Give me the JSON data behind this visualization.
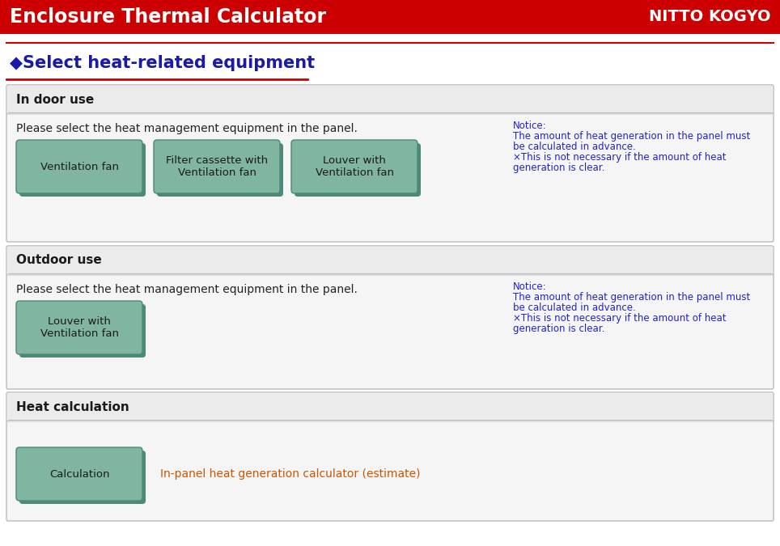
{
  "title": "Enclosure Thermal Calculator",
  "brand": "NITTO KOGYO",
  "header_bg": "#CC0000",
  "header_text_color": "#FFFFFF",
  "page_bg": "#FFFFFF",
  "section_heading": "◆Select heat-related equipment",
  "section_heading_color": "#1a1aaa",
  "section_heading_underline_color": "#CC0000",
  "sections": [
    {
      "label": "In door use",
      "label_bg": "#EBEBEB",
      "bg": "#F5F5F5",
      "border_color": "#BBBBBB",
      "prompt": "Please select the heat management equipment in the panel.",
      "prompt_color": "#222222",
      "buttons": [
        "Ventilation fan",
        "Filter cassette with\nVentilation fan",
        "Louver with\nVentilation fan"
      ],
      "button_bg": "#80B5A0",
      "button_shadow": "#4A8A76",
      "button_text_color": "#1A1A1A",
      "notice_title": "Notice:",
      "notice_lines": [
        "The amount of heat generation in the panel must",
        "be calculated in advance.",
        "×This is not necessary if the amount of heat",
        "generation is clear."
      ],
      "notice_color": "#2222CC"
    },
    {
      "label": "Outdoor use",
      "label_bg": "#EBEBEB",
      "bg": "#F5F5F5",
      "border_color": "#BBBBBB",
      "prompt": "Please select the heat management equipment in the panel.",
      "prompt_color": "#222222",
      "buttons": [
        "Louver with\nVentilation fan"
      ],
      "button_bg": "#80B5A0",
      "button_shadow": "#4A8A76",
      "button_text_color": "#1A1A1A",
      "notice_title": "Notice:",
      "notice_lines": [
        "The amount of heat generation in the panel must",
        "be calculated in advance.",
        "×This is not necessary if the amount of heat",
        "generation is clear."
      ],
      "notice_color": "#2222CC"
    },
    {
      "label": "Heat calculation",
      "label_bg": "#EBEBEB",
      "bg": "#F5F5F5",
      "border_color": "#BBBBBB",
      "prompt": null,
      "buttons": [
        "Calculation"
      ],
      "button_bg": "#80B5A0",
      "button_shadow": "#4A8A76",
      "button_text_color": "#1A1A1A",
      "notice_title": null,
      "notice_lines": [],
      "notice_color": "#2222CC",
      "extra_text": "In-panel heat generation calculator (estimate)",
      "extra_text_color": "#CC5500"
    }
  ]
}
